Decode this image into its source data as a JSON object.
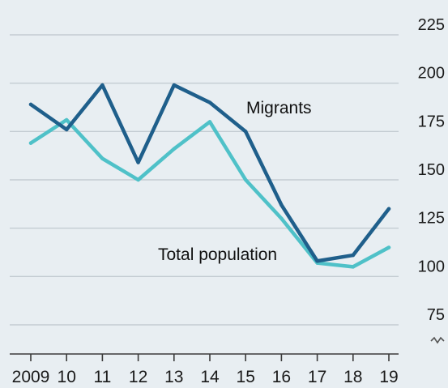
{
  "chart_data": {
    "type": "line",
    "x_labels": [
      "2009",
      "10",
      "11",
      "12",
      "13",
      "14",
      "15",
      "16",
      "17",
      "18",
      "19"
    ],
    "series": [
      {
        "name": "Migrants",
        "color": "#1f5f8b",
        "values": [
          189,
          176,
          199,
          159,
          199,
          190,
          175,
          137,
          108,
          111,
          135
        ]
      },
      {
        "name": "Total population",
        "color": "#4fc1c8",
        "values": [
          169,
          181,
          161,
          150,
          166,
          180,
          150,
          130,
          107,
          105,
          115
        ]
      }
    ],
    "y_ticks": [
      225,
      200,
      175,
      150,
      125,
      100,
      75
    ],
    "ylim": [
      75,
      225
    ],
    "y_axis_side": "right",
    "y_axis_break": true,
    "grid": true,
    "legend": "inline labels",
    "annotations": [
      {
        "text": "Migrants",
        "series": "Migrants"
      },
      {
        "text": "Total population",
        "series": "Total population"
      }
    ]
  }
}
